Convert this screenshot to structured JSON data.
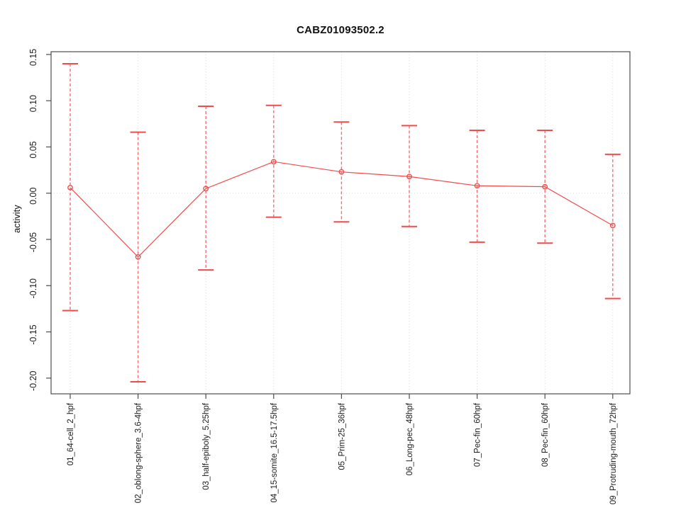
{
  "title": "CABZ01093502.2",
  "chart_data": {
    "type": "line",
    "title": "CABZ01093502.2",
    "xlabel": "",
    "ylabel": "activity",
    "ylim": [
      -0.217,
      0.153
    ],
    "ytick_values": [
      0.15,
      0.1,
      0.05,
      0.0,
      -0.05,
      -0.1,
      -0.15,
      -0.2
    ],
    "ytick_labels": [
      "0.15",
      "0.10",
      "0.05",
      "0.00",
      "-0.05",
      "-0.10",
      "-0.15",
      "-0.20"
    ],
    "grid": "dotted vertical line at every category; dotted horizontal line at y=0; no legend",
    "legend_position": "none",
    "categories": [
      "01_64-cell_2_hpf",
      "02_oblong-sphere_3.6-4hpf",
      "03_half-epiboly_5.25hpf",
      "04_15-somite_16.5-17.5hpf",
      "05_Prim-25_36hpf",
      "06_Long-pec_48hpf",
      "07_Pec-fin_60hpf",
      "08_Pec-fin_60hpf",
      "09_Protruding-mouth_72hpf"
    ],
    "series": [
      {
        "name": "mean activity",
        "marker": "open-circle",
        "values": [
          0.006,
          -0.069,
          0.005,
          0.034,
          0.023,
          0.018,
          0.008,
          0.007,
          -0.035
        ]
      },
      {
        "name": "upper error limit",
        "marker": "cap",
        "values": [
          0.14,
          0.066,
          0.094,
          0.095,
          0.077,
          0.073,
          0.068,
          0.068,
          0.042
        ]
      },
      {
        "name": "lower error limit",
        "marker": "cap",
        "values": [
          -0.127,
          -0.204,
          -0.083,
          -0.026,
          -0.031,
          -0.036,
          -0.053,
          -0.054,
          -0.114
        ]
      }
    ],
    "colors": {
      "series": "#f24b4b",
      "error_bar": "#f47070",
      "grid": "#d9d9d9",
      "frame": "#4d4d4d",
      "text": "#1a1a1a",
      "background": "#ffffff"
    }
  }
}
